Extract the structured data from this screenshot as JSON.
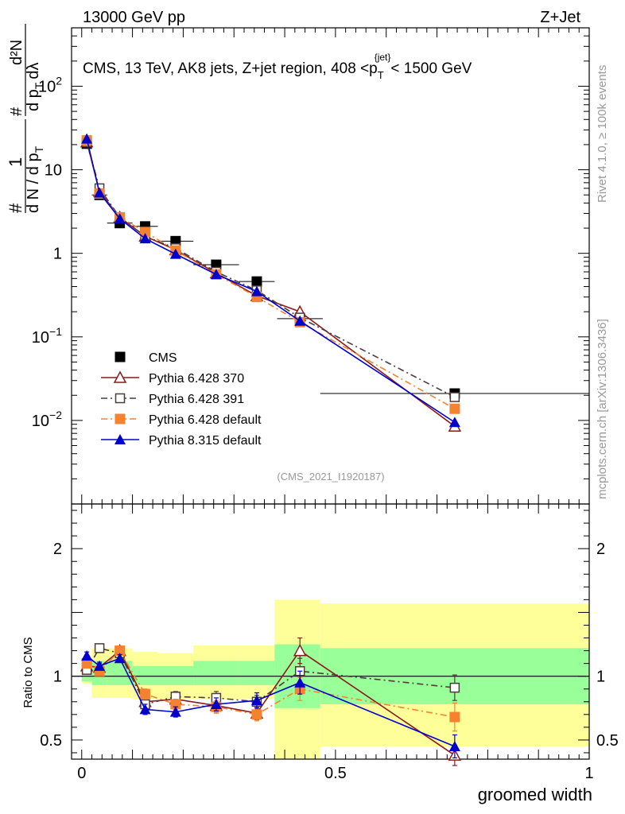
{
  "header": {
    "left": "13000 GeV pp",
    "right": "Z+Jet"
  },
  "side_labels": {
    "rivet": "Rivet 4.1.0, ≥ 100k events",
    "mcplots": "mcplots.cern.ch [arXiv:1306.3436]"
  },
  "chart_data": [
    {
      "type": "line",
      "panel": "main",
      "title": "CMS, 13 TeV, AK8 jets, Z+jet region, 408 < pT{jet} < 1500 GeV",
      "title_parts": {
        "prefix": "CMS, 13 TeV, AK8 jets, Z+jet region, 408 <p",
        "sub": "T",
        "sup": "{jet}",
        "suffix": "< 1500 GeV"
      },
      "ylabel": "1/dN/dpT d²N/dpT dλ",
      "ylabel_parts": {
        "num_top": "1",
        "den_left": "d N / d p",
        "den_sub": "T",
        "frac_num": "d²N",
        "frac_den": "d p",
        "frac_den_sub": "T",
        "frac_den_tail": "dλ",
        "hash": "#"
      },
      "yscale": "log",
      "ylim": [
        0.001,
        500
      ],
      "xlim": [
        -0.02,
        1.0
      ],
      "yticks": [
        {
          "value": 0.01,
          "base": "10",
          "exp": "−2"
        },
        {
          "value": 0.1,
          "base": "10",
          "exp": "−1"
        },
        {
          "value": 1,
          "base": "1",
          "exp": ""
        },
        {
          "value": 10,
          "base": "10",
          "exp": ""
        },
        {
          "value": 100,
          "base": "10",
          "exp": "2"
        }
      ],
      "watermark": "(CMS_2021_I1920187)",
      "legend_position": "bottom-left",
      "series": [
        {
          "name": "CMS",
          "color": "#000000",
          "marker": "square-filled",
          "style": "none",
          "x": [
            0.01,
            0.035,
            0.075,
            0.125,
            0.185,
            0.265,
            0.345,
            0.43,
            0.735
          ],
          "y": [
            20.5,
            5.0,
            2.3,
            2.1,
            1.4,
            0.73,
            0.46,
            0.165,
            0.021
          ],
          "xerr": [
            0.01,
            0.015,
            0.025,
            0.025,
            0.035,
            0.045,
            0.035,
            0.045,
            0.265
          ]
        },
        {
          "name": "Pythia 6.428 370",
          "color": "#8b1a1a",
          "marker": "triangle-open",
          "style": "solid",
          "x": [
            0.01,
            0.035,
            0.075,
            0.125,
            0.185,
            0.265,
            0.345,
            0.43,
            0.735
          ],
          "y": [
            21.5,
            5.5,
            2.7,
            1.6,
            1.1,
            0.58,
            0.31,
            0.2,
            0.0085
          ]
        },
        {
          "name": "Pythia 6.428 391",
          "color": "#4d3b3b",
          "marker": "square-open",
          "style": "dashdot",
          "x": [
            0.01,
            0.035,
            0.075,
            0.125,
            0.185,
            0.265,
            0.345,
            0.43,
            0.735
          ],
          "y": [
            21.5,
            6.0,
            2.7,
            1.6,
            1.15,
            0.6,
            0.36,
            0.17,
            0.019
          ]
        },
        {
          "name": "Pythia 6.428 default",
          "color": "#f58230",
          "marker": "square-filled",
          "style": "dashdot",
          "x": [
            0.01,
            0.035,
            0.075,
            0.125,
            0.185,
            0.265,
            0.345,
            0.43,
            0.735
          ],
          "y": [
            22.5,
            5.2,
            2.7,
            1.8,
            1.08,
            0.56,
            0.3,
            0.15,
            0.0138
          ]
        },
        {
          "name": "Pythia 8.315 default",
          "color": "#0000cd",
          "marker": "triangle-filled",
          "style": "solid",
          "x": [
            0.01,
            0.035,
            0.075,
            0.125,
            0.185,
            0.265,
            0.345,
            0.43,
            0.735
          ],
          "y": [
            23.5,
            5.3,
            2.6,
            1.5,
            0.98,
            0.56,
            0.35,
            0.155,
            0.0095
          ]
        }
      ]
    },
    {
      "type": "line",
      "panel": "ratio",
      "ylabel": "Ratio to CMS",
      "xlabel": "groomed width",
      "ylim": [
        0.35,
        2.35
      ],
      "xlim": [
        -0.02,
        1.0
      ],
      "yticks": [
        {
          "value": 0.5,
          "label": "0.5"
        },
        {
          "value": 1,
          "label": "1"
        },
        {
          "value": 2,
          "label": "2"
        }
      ],
      "xticks": [
        {
          "value": 0,
          "label": "0"
        },
        {
          "value": 0.5,
          "label": "0.5"
        },
        {
          "value": 1,
          "label": "1"
        }
      ],
      "bands": [
        {
          "x0": 0.0,
          "x1": 0.02,
          "green": [
            0.96,
            1.05
          ],
          "yellow": [
            0.94,
            1.1
          ]
        },
        {
          "x0": 0.02,
          "x1": 0.05,
          "green": [
            0.93,
            1.12
          ],
          "yellow": [
            0.83,
            1.22
          ]
        },
        {
          "x0": 0.05,
          "x1": 0.1,
          "green": [
            0.93,
            1.12
          ],
          "yellow": [
            0.83,
            1.22
          ]
        },
        {
          "x0": 0.1,
          "x1": 0.15,
          "green": [
            0.93,
            1.08
          ],
          "yellow": [
            0.82,
            1.19
          ]
        },
        {
          "x0": 0.15,
          "x1": 0.22,
          "green": [
            0.93,
            1.08
          ],
          "yellow": [
            0.82,
            1.18
          ]
        },
        {
          "x0": 0.22,
          "x1": 0.31,
          "green": [
            0.93,
            1.12
          ],
          "yellow": [
            0.82,
            1.24
          ]
        },
        {
          "x0": 0.31,
          "x1": 0.38,
          "green": [
            0.93,
            1.12
          ],
          "yellow": [
            0.82,
            1.24
          ]
        },
        {
          "x0": 0.38,
          "x1": 0.47,
          "green": [
            0.75,
            1.25
          ],
          "yellow": [
            0.3,
            1.6
          ]
        },
        {
          "x0": 0.47,
          "x1": 1.0,
          "green": [
            0.78,
            1.22
          ],
          "yellow": [
            0.45,
            1.57
          ]
        }
      ],
      "series": [
        {
          "name": "Pythia 6.428 370",
          "color": "#8b1a1a",
          "marker": "triangle-open",
          "style": "solid",
          "x": [
            0.01,
            0.035,
            0.075,
            0.125,
            0.185,
            0.265,
            0.345,
            0.43,
            0.735
          ],
          "y": [
            1.08,
            1.07,
            1.2,
            0.8,
            0.82,
            0.77,
            0.71,
            1.2,
            0.38
          ],
          "err": [
            0.03,
            0.03,
            0.03,
            0.04,
            0.04,
            0.05,
            0.05,
            0.1,
            0.08
          ]
        },
        {
          "name": "Pythia 6.428 391",
          "color": "#4d3b3b",
          "marker": "square-open",
          "style": "dashdot",
          "x": [
            0.01,
            0.035,
            0.075,
            0.125,
            0.185,
            0.265,
            0.345,
            0.43,
            0.735
          ],
          "y": [
            1.05,
            1.22,
            1.18,
            0.78,
            0.84,
            0.83,
            0.8,
            1.04,
            0.91
          ],
          "err": [
            0.03,
            0.03,
            0.03,
            0.04,
            0.04,
            0.05,
            0.05,
            0.1,
            0.1
          ]
        },
        {
          "name": "Pythia 6.428 default",
          "color": "#f58230",
          "marker": "square-filled",
          "style": "dashdot",
          "x": [
            0.01,
            0.035,
            0.075,
            0.125,
            0.185,
            0.265,
            0.345,
            0.43,
            0.735
          ],
          "y": [
            1.1,
            1.04,
            1.2,
            0.86,
            0.78,
            0.76,
            0.7,
            0.9,
            0.68
          ],
          "err": [
            0.03,
            0.03,
            0.03,
            0.04,
            0.04,
            0.05,
            0.05,
            0.09,
            0.11
          ]
        },
        {
          "name": "Pythia 8.315 default",
          "color": "#0000cd",
          "marker": "triangle-filled",
          "style": "solid",
          "x": [
            0.01,
            0.035,
            0.075,
            0.125,
            0.185,
            0.265,
            0.345,
            0.43,
            0.735
          ],
          "y": [
            1.16,
            1.08,
            1.14,
            0.74,
            0.72,
            0.78,
            0.81,
            0.95,
            0.45
          ],
          "err": [
            0.03,
            0.03,
            0.03,
            0.04,
            0.04,
            0.05,
            0.06,
            0.09,
            0.09
          ]
        }
      ]
    }
  ]
}
